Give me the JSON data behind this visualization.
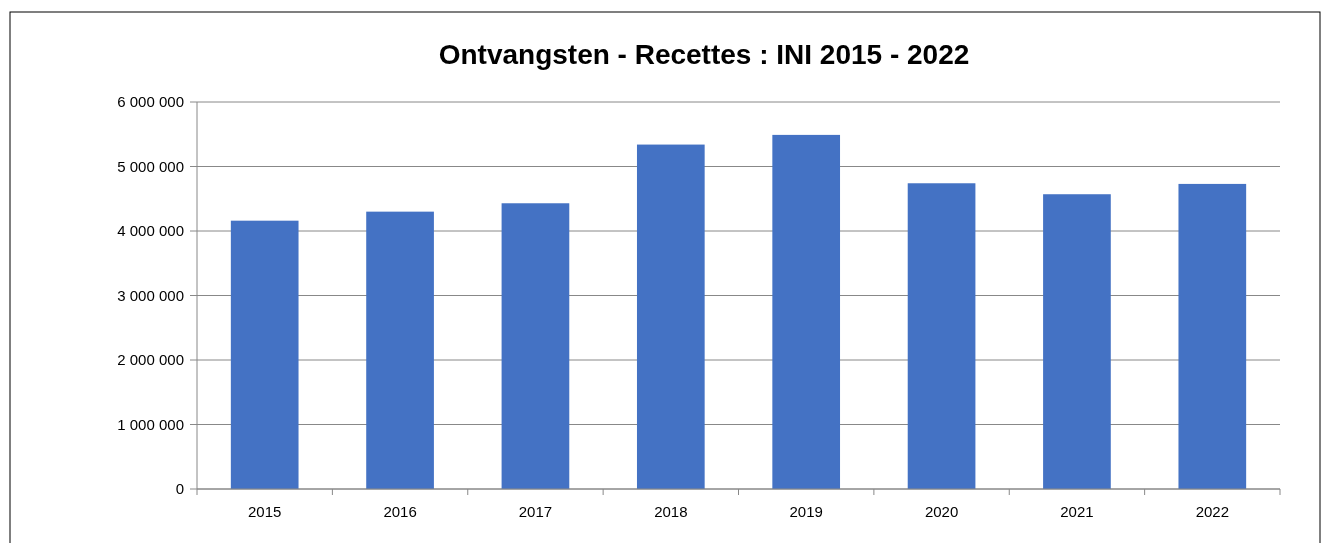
{
  "chart_data": {
    "type": "bar",
    "title": "Ontvangsten - Recettes : INI 2015 - 2022",
    "categories": [
      "2015",
      "2016",
      "2017",
      "2018",
      "2019",
      "2020",
      "2021",
      "2022"
    ],
    "values": [
      4160000,
      4300000,
      4430000,
      5340000,
      5490000,
      4740000,
      4570000,
      4730000
    ],
    "color": "#4472c4",
    "ylim": [
      0,
      6000000
    ],
    "yticks": [
      {
        "value": 0,
        "label": "0"
      },
      {
        "value": 1000000,
        "label": "1 000 000"
      },
      {
        "value": 2000000,
        "label": "2 000 000"
      },
      {
        "value": 3000000,
        "label": "3 000 000"
      },
      {
        "value": 4000000,
        "label": "4 000 000"
      },
      {
        "value": 5000000,
        "label": "5 000 000"
      },
      {
        "value": 6000000,
        "label": "6 000 000"
      }
    ],
    "grid": "y"
  }
}
